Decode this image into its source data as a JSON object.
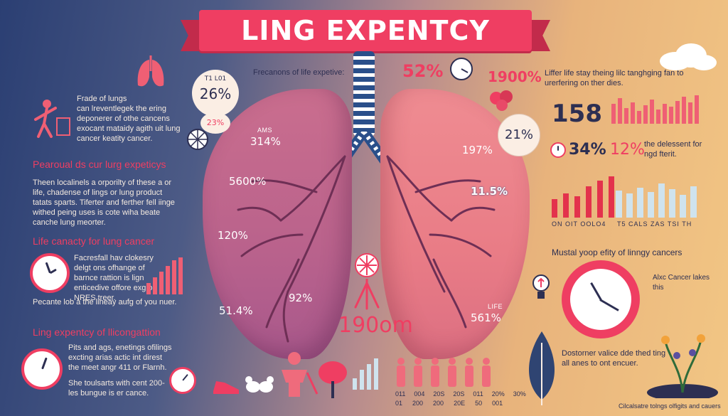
{
  "title": "LING EXPENTCY",
  "center": {
    "top_label": "Frecanons of life expetive:",
    "left_lung_labels": [
      "AMS",
      "314%",
      "5600%",
      "120%",
      "92%",
      "51.4%"
    ],
    "right_lung_labels": [
      "197%",
      "11.5%",
      "LIFE",
      "561%"
    ],
    "bottom_value": "190om"
  },
  "top_badges": {
    "badge1_small": "T1 L01",
    "badge1_value": "26%",
    "badge2_value": "23%",
    "pct_52": "52%",
    "pct_1900": "1900%",
    "pct_21": "21%"
  },
  "left_panel": {
    "block1_title": "Frade of lungs",
    "block1_text": "can lreventlegek the ering deponerer of othe cancens exocant mataidy agith uit lung cancer keatity cancer.",
    "heading1": "Pearoual ds cur lurg expeticys",
    "block2_text": "Theen localinels a orporilty of these a or life, chadense of lings or lung product tatats sparts. Tiferter and ferther fell iinge withed peing uses is cote wiha beate canche lung meorter.",
    "heading2": "Life canacty for lung cancer",
    "block3_text": "Facresfall hav clokesry delgt ons ofhange of barnce rattion is lign enticedive offore exg or NRES treer.",
    "block3_footer": "Pecante lob a the lineay aufg of you nuer.",
    "heading3": "Ling expentcy of llicongattion",
    "block4_text": "Pits and ags, enetings ofilings excting arias actic int direst the meet angr 411 or Flarnh.",
    "block4_footer": "She toulsarts with cent 200-les bungue is er cance."
  },
  "right_panel": {
    "intro_text": "Liffer life stay theing lilc tanghging fan to urerfering on ther dies.",
    "big_number": "158",
    "pct_34": "34%",
    "pct_12": "12%",
    "side_text": "the delessent for ngd fterit.",
    "axis_left": "ON OIT OOLO4",
    "axis_right": "T5 CALS ZAS TSI TH",
    "heading": "Mustal yoop efity of linngy cancers",
    "clock_note": "Alxc Cancer lakes this",
    "bottom_text": "Dostorner valice dde thed ting all anes to ont encuer.",
    "footer_text": "Cilcalsatre tolngs olfigits and cauers"
  },
  "bottom_row": {
    "axis_labels": [
      "011",
      "004",
      "20S",
      "20S",
      "011",
      "20%",
      "30%"
    ],
    "axis_labels_2": [
      "01",
      "200",
      "200",
      "20E",
      "50",
      "001"
    ]
  },
  "chart_data": {
    "type": "bar",
    "categories": [],
    "values": []
  }
}
